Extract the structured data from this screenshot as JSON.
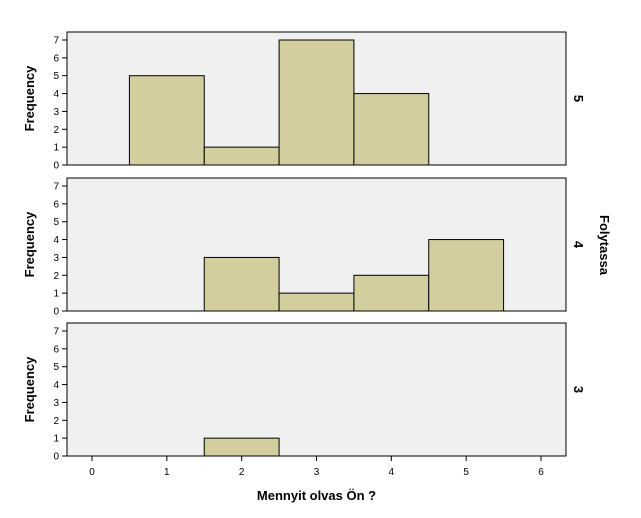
{
  "chart_data": {
    "type": "bar",
    "xlabel": "Mennyit olvas Ön ?",
    "ylabel": "Frequency",
    "facet_title": "Folytassa",
    "xlim": [
      0,
      6
    ],
    "ylim": [
      0,
      7
    ],
    "x_ticks": [
      "0",
      "1",
      "2",
      "3",
      "4",
      "5",
      "6"
    ],
    "y_ticks": [
      "0",
      "1",
      "2",
      "3",
      "4",
      "5",
      "6",
      "7"
    ],
    "categories": [
      1,
      2,
      3,
      4,
      5
    ],
    "panels": [
      {
        "label": "5",
        "values": [
          5,
          1,
          7,
          4,
          0
        ]
      },
      {
        "label": "4",
        "values": [
          0,
          3,
          1,
          2,
          4
        ]
      },
      {
        "label": "3",
        "values": [
          0,
          1,
          0,
          0,
          0
        ]
      }
    ],
    "bar_color": "#d3ce9e",
    "panel_bg": "#f0f0f0",
    "grid": false
  }
}
